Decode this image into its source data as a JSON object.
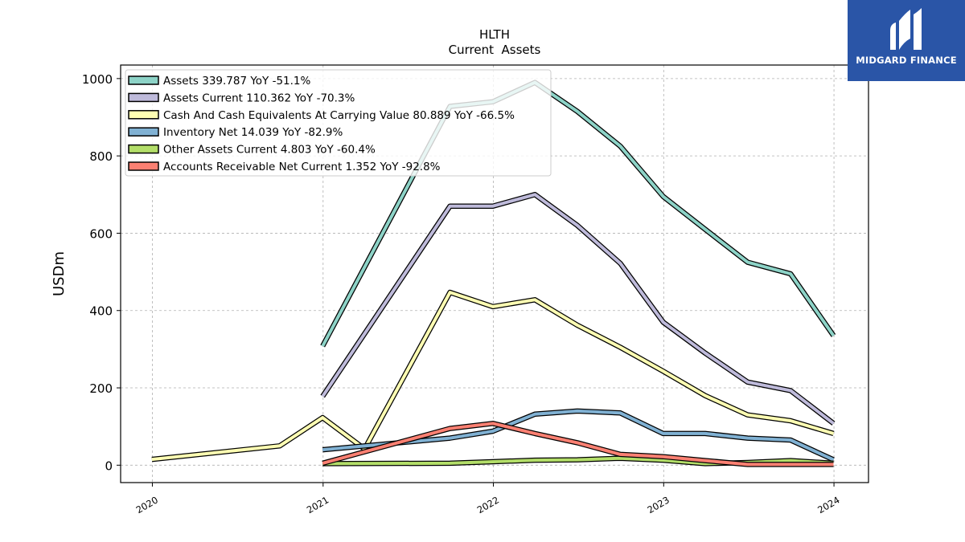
{
  "brand": {
    "name": "MIDGARD FINANCE",
    "bg_color": "#2a55a7",
    "icon": "midgard-m-logo"
  },
  "chart_data": {
    "type": "line",
    "title": "HLTH",
    "subtitle": "Current  Assets",
    "ylabel": "USDm",
    "xlabel": "",
    "ylim": [
      -45,
      1035
    ],
    "xlim": [
      "2019-10-25",
      "2024-03-15"
    ],
    "yticks": [
      0,
      200,
      400,
      600,
      800,
      1000
    ],
    "xticks": [
      "2020",
      "2021",
      "2022",
      "2023",
      "2024"
    ],
    "grid": true,
    "legend_position": "top-left",
    "series": [
      {
        "name": "Assets  339.787 YoY -51.1%",
        "color": "#8dd3c7",
        "points": [
          [
            "2020-12-31",
            308
          ],
          [
            "2021-09-30",
            928
          ],
          [
            "2021-12-31",
            940
          ],
          [
            "2022-03-31",
            990
          ],
          [
            "2022-06-30",
            915
          ],
          [
            "2022-09-30",
            825
          ],
          [
            "2022-12-31",
            695
          ],
          [
            "2023-03-31",
            610
          ],
          [
            "2023-06-30",
            525
          ],
          [
            "2023-09-30",
            495
          ],
          [
            "2023-12-31",
            335
          ]
        ]
      },
      {
        "name": "Assets Current  110.362 YoY -70.3%",
        "color": "#bebada",
        "points": [
          [
            "2020-12-31",
            178
          ],
          [
            "2021-09-30",
            670
          ],
          [
            "2021-12-31",
            670
          ],
          [
            "2022-03-31",
            700
          ],
          [
            "2022-06-30",
            620
          ],
          [
            "2022-09-30",
            522
          ],
          [
            "2022-12-31",
            370
          ],
          [
            "2023-03-31",
            290
          ],
          [
            "2023-06-30",
            215
          ],
          [
            "2023-09-30",
            193
          ],
          [
            "2023-12-31",
            108
          ]
        ]
      },
      {
        "name": "Cash And Cash Equivalents At Carrying Value  80.889 YoY -66.5%",
        "color": "#ffffb3",
        "points": [
          [
            "2019-12-31",
            15
          ],
          [
            "2020-09-30",
            50
          ],
          [
            "2020-12-31",
            123
          ],
          [
            "2021-03-31",
            42
          ],
          [
            "2021-09-30",
            447
          ],
          [
            "2021-12-31",
            410
          ],
          [
            "2022-03-31",
            428
          ],
          [
            "2022-06-30",
            362
          ],
          [
            "2022-09-30",
            305
          ],
          [
            "2022-12-31",
            243
          ],
          [
            "2023-03-31",
            180
          ],
          [
            "2023-06-30",
            130
          ],
          [
            "2023-09-30",
            115
          ],
          [
            "2023-12-31",
            82
          ]
        ]
      },
      {
        "name": "Inventory Net  14.039 YoY -82.9%",
        "color": "#80b1d3",
        "points": [
          [
            "2020-12-31",
            40
          ],
          [
            "2021-09-30",
            70
          ],
          [
            "2021-12-31",
            88
          ],
          [
            "2022-03-31",
            132
          ],
          [
            "2022-06-30",
            140
          ],
          [
            "2022-09-30",
            135
          ],
          [
            "2022-12-31",
            82
          ],
          [
            "2023-03-31",
            82
          ],
          [
            "2023-06-30",
            70
          ],
          [
            "2023-09-30",
            65
          ],
          [
            "2023-12-31",
            14
          ]
        ]
      },
      {
        "name": "Other Assets Current  4.803 YoY -60.4%",
        "color": "#b3de69",
        "points": [
          [
            "2020-12-31",
            4
          ],
          [
            "2021-09-30",
            5
          ],
          [
            "2021-12-31",
            9
          ],
          [
            "2022-03-31",
            13
          ],
          [
            "2022-06-30",
            14
          ],
          [
            "2022-09-30",
            18
          ],
          [
            "2022-12-31",
            13
          ],
          [
            "2023-03-31",
            4
          ],
          [
            "2023-06-30",
            7
          ],
          [
            "2023-09-30",
            12
          ],
          [
            "2023-12-31",
            5
          ]
        ]
      },
      {
        "name": "Accounts Receivable Net Current  1.352 YoY -92.8%",
        "color": "#fb8072",
        "points": [
          [
            "2020-12-31",
            5
          ],
          [
            "2021-09-30",
            95
          ],
          [
            "2021-12-31",
            108
          ],
          [
            "2022-03-31",
            82
          ],
          [
            "2022-06-30",
            58
          ],
          [
            "2022-09-30",
            28
          ],
          [
            "2022-12-31",
            22
          ],
          [
            "2023-03-31",
            12
          ],
          [
            "2023-06-30",
            2
          ],
          [
            "2023-09-30",
            2
          ],
          [
            "2023-12-31",
            2
          ]
        ]
      }
    ]
  }
}
